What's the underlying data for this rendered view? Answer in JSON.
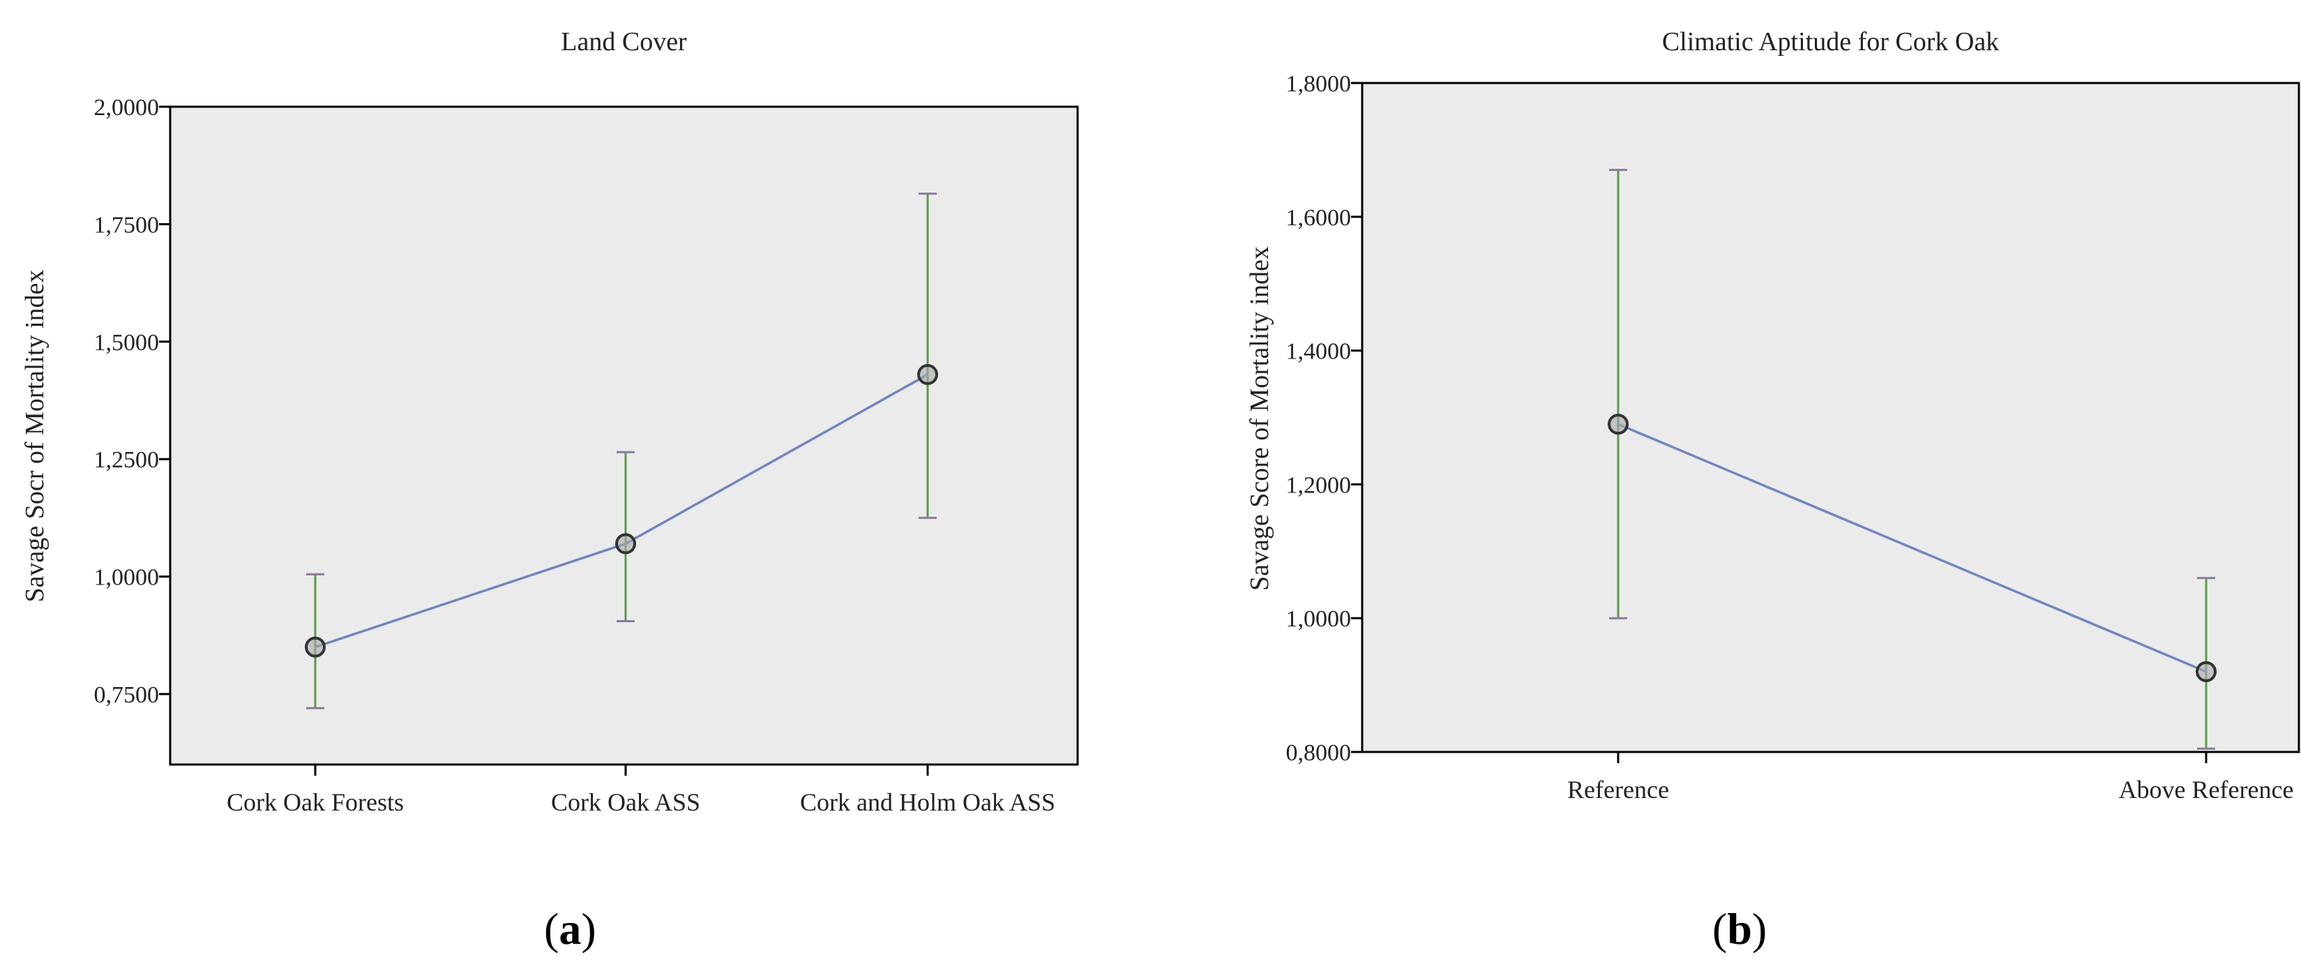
{
  "chart_data": [
    {
      "type": "line",
      "title": "Land Cover",
      "xlabel": "",
      "ylabel": "Savage Socr of Mortality index",
      "categories": [
        "Cork Oak Forests",
        "Cork Oak ASS",
        "Cork and Holm Oak ASS"
      ],
      "values": [
        0.85,
        1.07,
        1.43
      ],
      "error_low": [
        0.72,
        0.905,
        1.125
      ],
      "error_high": [
        1.005,
        1.265,
        1.815
      ],
      "ylim": [
        0.6,
        2.0
      ],
      "yticks": [
        0.75,
        1.0,
        1.25,
        1.5,
        1.75,
        2.0
      ],
      "ytick_labels": [
        "0,7500",
        "1,0000",
        "1,2500",
        "1,5000",
        "1,7500",
        "2,0000"
      ],
      "grid": false,
      "panel_label": {
        "open": "(",
        "letter": "a",
        "close": ")"
      }
    },
    {
      "type": "line",
      "title": "Climatic Aptitude for Cork Oak",
      "xlabel": "",
      "ylabel": "Savage Score of Mortality index",
      "categories": [
        "Reference",
        "Above Reference"
      ],
      "values": [
        1.29,
        0.92
      ],
      "error_low": [
        1.0,
        0.805
      ],
      "error_high": [
        1.67,
        1.06
      ],
      "ylim": [
        0.8,
        1.8
      ],
      "yticks": [
        0.8,
        1.0,
        1.2,
        1.4,
        1.6,
        1.8
      ],
      "ytick_labels": [
        "0,8000",
        "1,0000",
        "1,2000",
        "1,4000",
        "1,6000",
        "1,8000"
      ],
      "grid": false,
      "panel_label": {
        "open": "(",
        "letter": "b",
        "close": ")"
      }
    }
  ],
  "colors": {
    "plot_bg": "#ebebeb",
    "line": "#6f86bf",
    "error_bar": "#5a9a4a",
    "cap": "#8a7a9a",
    "marker_edge": "#333333",
    "marker_fill": "#a8a8a8"
  }
}
